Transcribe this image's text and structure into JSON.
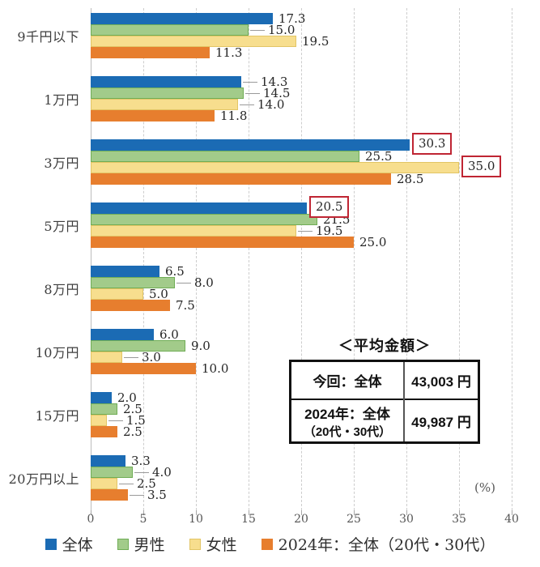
{
  "chart_data": {
    "type": "bar",
    "orientation": "horizontal",
    "unit_label": "(%)",
    "xlim": [
      0,
      40
    ],
    "ticks": [
      0,
      5,
      10,
      15,
      20,
      25,
      30,
      35,
      40
    ],
    "grid": "dashed-vertical",
    "legend_position": "bottom",
    "categories": [
      "9千円以下",
      "1万円",
      "3万円",
      "5万円",
      "8万円",
      "10万円",
      "15万円",
      "20万円以上"
    ],
    "series": [
      {
        "name": "全体",
        "color": "#1b6bb4",
        "border": "#1b6bb4",
        "values": [
          17.3,
          14.3,
          30.3,
          20.5,
          6.5,
          6.0,
          2.0,
          3.3
        ]
      },
      {
        "name": "男性",
        "color": "#a2cb8a",
        "border": "#70ad56",
        "values": [
          15.0,
          14.5,
          25.5,
          21.5,
          8.0,
          9.0,
          2.5,
          4.0
        ]
      },
      {
        "name": "女性",
        "color": "#f7de8e",
        "border": "#e2c565",
        "values": [
          19.5,
          14.0,
          35.0,
          19.5,
          5.0,
          3.0,
          1.5,
          2.5
        ]
      },
      {
        "name": "2024年：全体（20代・30代）",
        "color": "#e77e2e",
        "border": "#e77e2e",
        "values": [
          11.3,
          11.8,
          28.5,
          25.0,
          7.5,
          10.0,
          2.5,
          3.5
        ]
      }
    ],
    "boxed_labels": [
      [
        2,
        0
      ],
      [
        2,
        2
      ],
      [
        3,
        0
      ]
    ],
    "leader_labels": [
      [
        0,
        1
      ],
      [
        1,
        0
      ],
      [
        1,
        1
      ],
      [
        1,
        2
      ],
      [
        3,
        2
      ],
      [
        4,
        1
      ],
      [
        5,
        2
      ],
      [
        6,
        2
      ],
      [
        7,
        1
      ],
      [
        7,
        2
      ],
      [
        7,
        3
      ]
    ],
    "box_color": "#bf2533"
  },
  "avg_table": {
    "title": "＜平均金額＞",
    "rows": [
      {
        "label_line1": "今回：全体",
        "label_line2": "",
        "value": "43,003 円"
      },
      {
        "label_line1": "2024年：全体",
        "label_line2": "（20代・30代）",
        "value": "49,987 円"
      }
    ]
  }
}
